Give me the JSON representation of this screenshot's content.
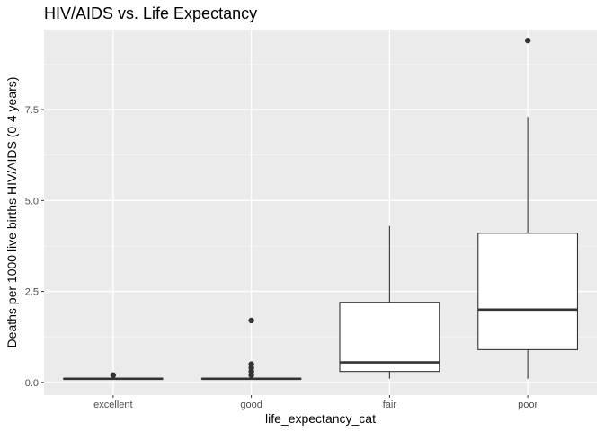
{
  "chart_data": {
    "type": "boxplot",
    "title": "HIV/AIDS vs. Life Expectancy",
    "xlabel": "life_expectancy_cat",
    "ylabel": "Deaths per 1000 live births HIV/AIDS (0-4 years)",
    "categories": [
      "excellent",
      "good",
      "fair",
      "poor"
    ],
    "ylim": [
      -0.35,
      9.7
    ],
    "yticks": [
      0.0,
      2.5,
      5.0,
      7.5
    ],
    "ytick_labels": [
      "0.0",
      "2.5",
      "5.0",
      "7.5"
    ],
    "grid": true,
    "boxes": [
      {
        "category": "excellent",
        "whisker_low": 0.1,
        "q1": 0.1,
        "median": 0.1,
        "q3": 0.1,
        "whisker_high": 0.1,
        "outliers": [
          0.2
        ]
      },
      {
        "category": "good",
        "whisker_low": 0.1,
        "q1": 0.1,
        "median": 0.1,
        "q3": 0.1,
        "whisker_high": 0.1,
        "outliers": [
          0.2,
          0.3,
          0.4,
          0.5,
          1.7
        ]
      },
      {
        "category": "fair",
        "whisker_low": 0.1,
        "q1": 0.3,
        "median": 0.55,
        "q3": 2.2,
        "whisker_high": 4.3,
        "outliers": []
      },
      {
        "category": "poor",
        "whisker_low": 0.1,
        "q1": 0.9,
        "median": 2.0,
        "q3": 4.1,
        "whisker_high": 7.3,
        "outliers": [
          9.4
        ]
      }
    ],
    "colors": {
      "panel_background": "#ebebeb",
      "grid_major": "#ffffff",
      "grid_minor": "#f5f5f5",
      "box_fill": "#ffffff",
      "box_stroke": "#333333",
      "tick": "#333333"
    }
  }
}
